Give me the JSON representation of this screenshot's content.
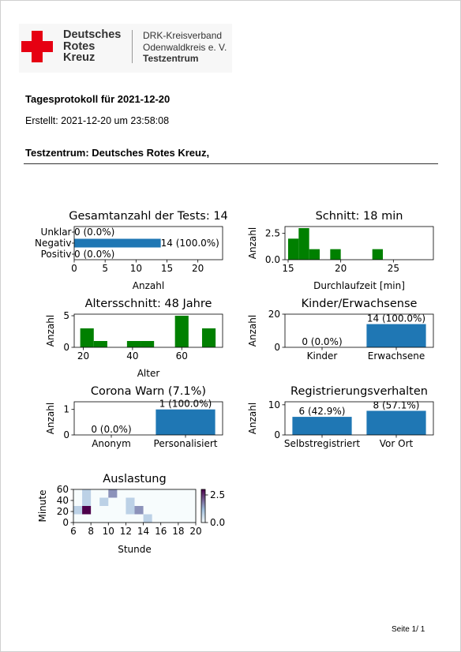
{
  "org": {
    "logo_text": [
      "Deutsches",
      "Rotes",
      "Kreuz"
    ],
    "unit_line1": "DRK-Kreisverband",
    "unit_line2": "Odenwaldkreis e. V.",
    "unit_line3": "Testzentrum",
    "brand_color": "#e60012"
  },
  "doc": {
    "title": "Tagesprotokoll für 2021-12-20",
    "created": "Erstellt: 2021-12-20 um 23:58:08",
    "center": "Testzentrum: Deutsches Rotes Kreuz,"
  },
  "footer": {
    "page": "Seite 1/ 1"
  },
  "chart_data": [
    {
      "type": "bar",
      "orientation": "horizontal",
      "title": "Gesamtanzahl der Tests: 14",
      "xlabel": "Anzahl",
      "ylabel": "",
      "categories": [
        "Unklar",
        "Negativ",
        "Positiv"
      ],
      "values": [
        0,
        14,
        0
      ],
      "data_labels": [
        "0 (0.0%)",
        "14 (100.0%)",
        "0 (0.0%)"
      ],
      "xlim": [
        0,
        24
      ],
      "xticks": [
        0,
        5,
        10,
        15,
        20
      ],
      "color": "#1f77b4"
    },
    {
      "type": "bar",
      "title": "Schnitt: 18 min",
      "xlabel": "Durchlaufzeit [min]",
      "ylabel": "Anzahl",
      "bin_width": 1,
      "x": [
        15.5,
        16.5,
        17.5,
        19.5,
        23.5
      ],
      "values": [
        2,
        3,
        1,
        1,
        1
      ],
      "xlim": [
        14.7,
        28.8
      ],
      "ylim": [
        0,
        3.15
      ],
      "xticks": [
        15,
        20,
        25
      ],
      "yticks": [
        0.0,
        2.5
      ],
      "color": "#008000"
    },
    {
      "type": "bar",
      "title": "Altersschnitt: 48 Jahre",
      "xlabel": "Alter",
      "ylabel": "Anzahl",
      "bin_width": 5.5,
      "x": [
        21.5,
        27,
        40.5,
        46,
        60,
        71
      ],
      "values": [
        3,
        1,
        1,
        1,
        5,
        3
      ],
      "xlim": [
        16.3,
        76.6
      ],
      "ylim": [
        0,
        5.25
      ],
      "xticks": [
        20,
        40,
        60
      ],
      "yticks": [
        0,
        5
      ],
      "color": "#008000"
    },
    {
      "type": "bar",
      "title": "Kinder/Erwachsense",
      "xlabel": "",
      "ylabel": "Anzahl",
      "categories": [
        "Kinder",
        "Erwachsene"
      ],
      "values": [
        0,
        14
      ],
      "data_labels": [
        "0 (0.0%)",
        "14 (100.0%)"
      ],
      "ylim": [
        0,
        20
      ],
      "yticks": [
        0,
        20
      ],
      "color": "#1f77b4"
    },
    {
      "type": "bar",
      "title": "Corona Warn (7.1%)",
      "xlabel": "",
      "ylabel": "Anzahl",
      "categories": [
        "Anonym",
        "Personalisiert"
      ],
      "values": [
        0,
        1
      ],
      "data_labels": [
        "0 (0.0%)",
        "1 (100.0%)"
      ],
      "ylim": [
        0,
        1.3
      ],
      "yticks": [
        0,
        1
      ],
      "color": "#1f77b4"
    },
    {
      "type": "bar",
      "title": "Registrierungsverhalten",
      "xlabel": "",
      "ylabel": "Anzahl",
      "categories": [
        "Selbstregistriert",
        "Vor Ort"
      ],
      "values": [
        6,
        8
      ],
      "data_labels": [
        "6 (42.9%)",
        "8 (57.1%)"
      ],
      "ylim": [
        0,
        11
      ],
      "yticks": [
        0,
        10
      ],
      "color": "#1f77b4"
    },
    {
      "type": "heatmap",
      "title": "Auslastung",
      "xlabel": "Stunde",
      "ylabel": "Minute",
      "xlim": [
        6,
        20
      ],
      "ylim": [
        0,
        60
      ],
      "xticks": [
        6,
        8,
        10,
        12,
        14,
        16,
        18,
        20
      ],
      "yticks": [
        0,
        20,
        40,
        60
      ],
      "cells": [
        {
          "hour": 6,
          "minute": 15,
          "value": 0.8
        },
        {
          "hour": 7,
          "minute": 15,
          "value": 3
        },
        {
          "hour": 7,
          "minute": 30,
          "value": 0.8
        },
        {
          "hour": 7,
          "minute": 45,
          "value": 0.8
        },
        {
          "hour": 9,
          "minute": 30,
          "value": 0.8
        },
        {
          "hour": 10,
          "minute": 45,
          "value": 1.6
        },
        {
          "hour": 12,
          "minute": 15,
          "value": 0.8
        },
        {
          "hour": 12,
          "minute": 30,
          "value": 0.8
        },
        {
          "hour": 13,
          "minute": 15,
          "value": 1.6
        },
        {
          "hour": 14,
          "minute": 0,
          "value": 0.8
        }
      ],
      "colorbar": {
        "min": 0.0,
        "max": 3.0,
        "ticks": [
          "0.0",
          "2.5"
        ]
      },
      "colors": {
        "low": "#f7fcfd",
        "mid": "#9ebcda",
        "high": "#4d004b"
      }
    }
  ]
}
